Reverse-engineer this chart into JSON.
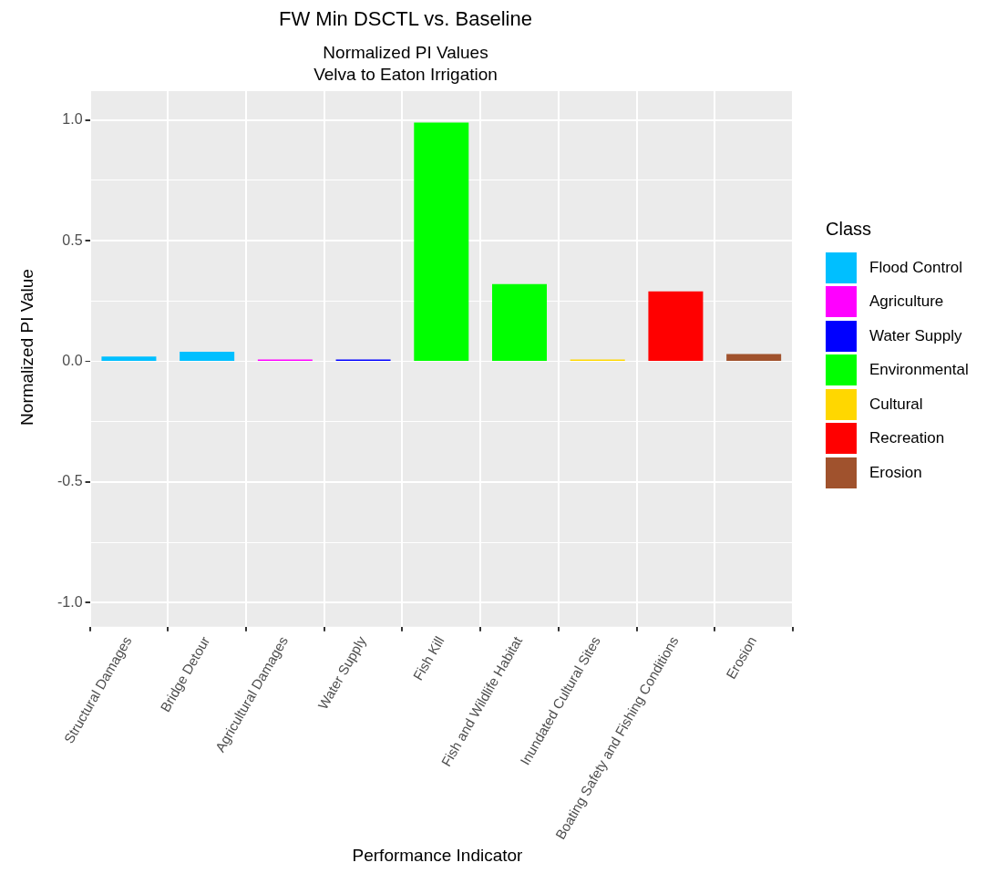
{
  "chart_data": {
    "type": "bar",
    "title": "FW Min DSCTL vs. Baseline",
    "subtitle": "Normalized PI Values\nVelva to Eaton Irrigation",
    "xlabel": "Performance Indicator",
    "ylabel": "Normalized PI Value",
    "legend_title": "Class",
    "categories": [
      "Structural Damages",
      "Bridge Detour",
      "Agricultural Damages",
      "Water Supply",
      "Fish Kill",
      "Fish and Wildlife Habitat",
      "Inundated Cultural Sites",
      "Boating Safety and Fishing Conditions",
      "Erosion"
    ],
    "series": [
      {
        "name": "Flood Control",
        "color": "#00bfff",
        "values": [
          0.02,
          0.04,
          null,
          null,
          null,
          null,
          null,
          null,
          null
        ]
      },
      {
        "name": "Agriculture",
        "color": "#ff00ff",
        "values": [
          null,
          null,
          0.008,
          null,
          null,
          null,
          null,
          null,
          null
        ]
      },
      {
        "name": "Water Supply",
        "color": "#0000ff",
        "values": [
          null,
          null,
          null,
          0.008,
          null,
          null,
          null,
          null,
          null
        ]
      },
      {
        "name": "Environmental",
        "color": "#00ff00",
        "values": [
          null,
          null,
          null,
          null,
          0.99,
          0.32,
          null,
          null,
          null
        ]
      },
      {
        "name": "Cultural",
        "color": "#ffd700",
        "values": [
          null,
          null,
          null,
          null,
          null,
          null,
          0.008,
          null,
          null
        ]
      },
      {
        "name": "Recreation",
        "color": "#ff0000",
        "values": [
          null,
          null,
          null,
          null,
          null,
          null,
          null,
          0.29,
          null
        ]
      },
      {
        "name": "Erosion",
        "color": "#a0522d",
        "values": [
          null,
          null,
          null,
          null,
          null,
          null,
          null,
          null,
          0.03
        ]
      }
    ],
    "ylim": [
      -1.1,
      1.12
    ],
    "yticks": [
      {
        "value": -1,
        "label": "-1.0"
      },
      {
        "value": -0.75,
        "label": null
      },
      {
        "value": -0.5,
        "label": "-0.5"
      },
      {
        "value": -0.25,
        "label": null
      },
      {
        "value": 0,
        "label": "0.0"
      },
      {
        "value": 0.25,
        "label": null
      },
      {
        "value": 0.5,
        "label": "0.5"
      },
      {
        "value": 0.75,
        "label": null
      },
      {
        "value": 1,
        "label": "1.0"
      }
    ],
    "grid": true,
    "legend": "right"
  }
}
